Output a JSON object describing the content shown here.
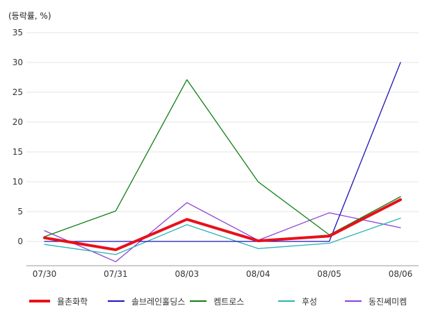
{
  "chart_data": {
    "type": "line",
    "unit_label": "(등락률, %)",
    "categories": [
      "07/30",
      "07/31",
      "08/03",
      "08/04",
      "08/05",
      "08/06"
    ],
    "y_ticks": [
      "35",
      "30",
      "25",
      "20",
      "15",
      "10",
      "5",
      "0"
    ],
    "ylim": [
      -4,
      35
    ],
    "grid": true,
    "legend_position": "bottom",
    "series": [
      {
        "name": "율촌화학",
        "color": "#e8101a",
        "width": 4,
        "values": [
          0.6,
          -1.4,
          3.7,
          0.1,
          0.9,
          7.0
        ]
      },
      {
        "name": "솔브레인홀딩스",
        "color": "#1a12b8",
        "width": 1.3,
        "values": [
          0.0,
          0.0,
          0.0,
          0.0,
          0.0,
          30.0
        ]
      },
      {
        "name": "켐트로스",
        "color": "#0f7e12",
        "width": 1.3,
        "values": [
          0.8,
          5.1,
          27.1,
          10.0,
          1.1,
          7.5
        ]
      },
      {
        "name": "후성",
        "color": "#2ab3b3",
        "width": 1.3,
        "values": [
          -0.5,
          -2.2,
          2.8,
          -1.2,
          -0.3,
          3.9
        ]
      },
      {
        "name": "동진쎄미켐",
        "color": "#8e3fd6",
        "width": 1.3,
        "values": [
          1.8,
          -3.4,
          6.5,
          0.2,
          4.8,
          2.3
        ]
      }
    ]
  }
}
